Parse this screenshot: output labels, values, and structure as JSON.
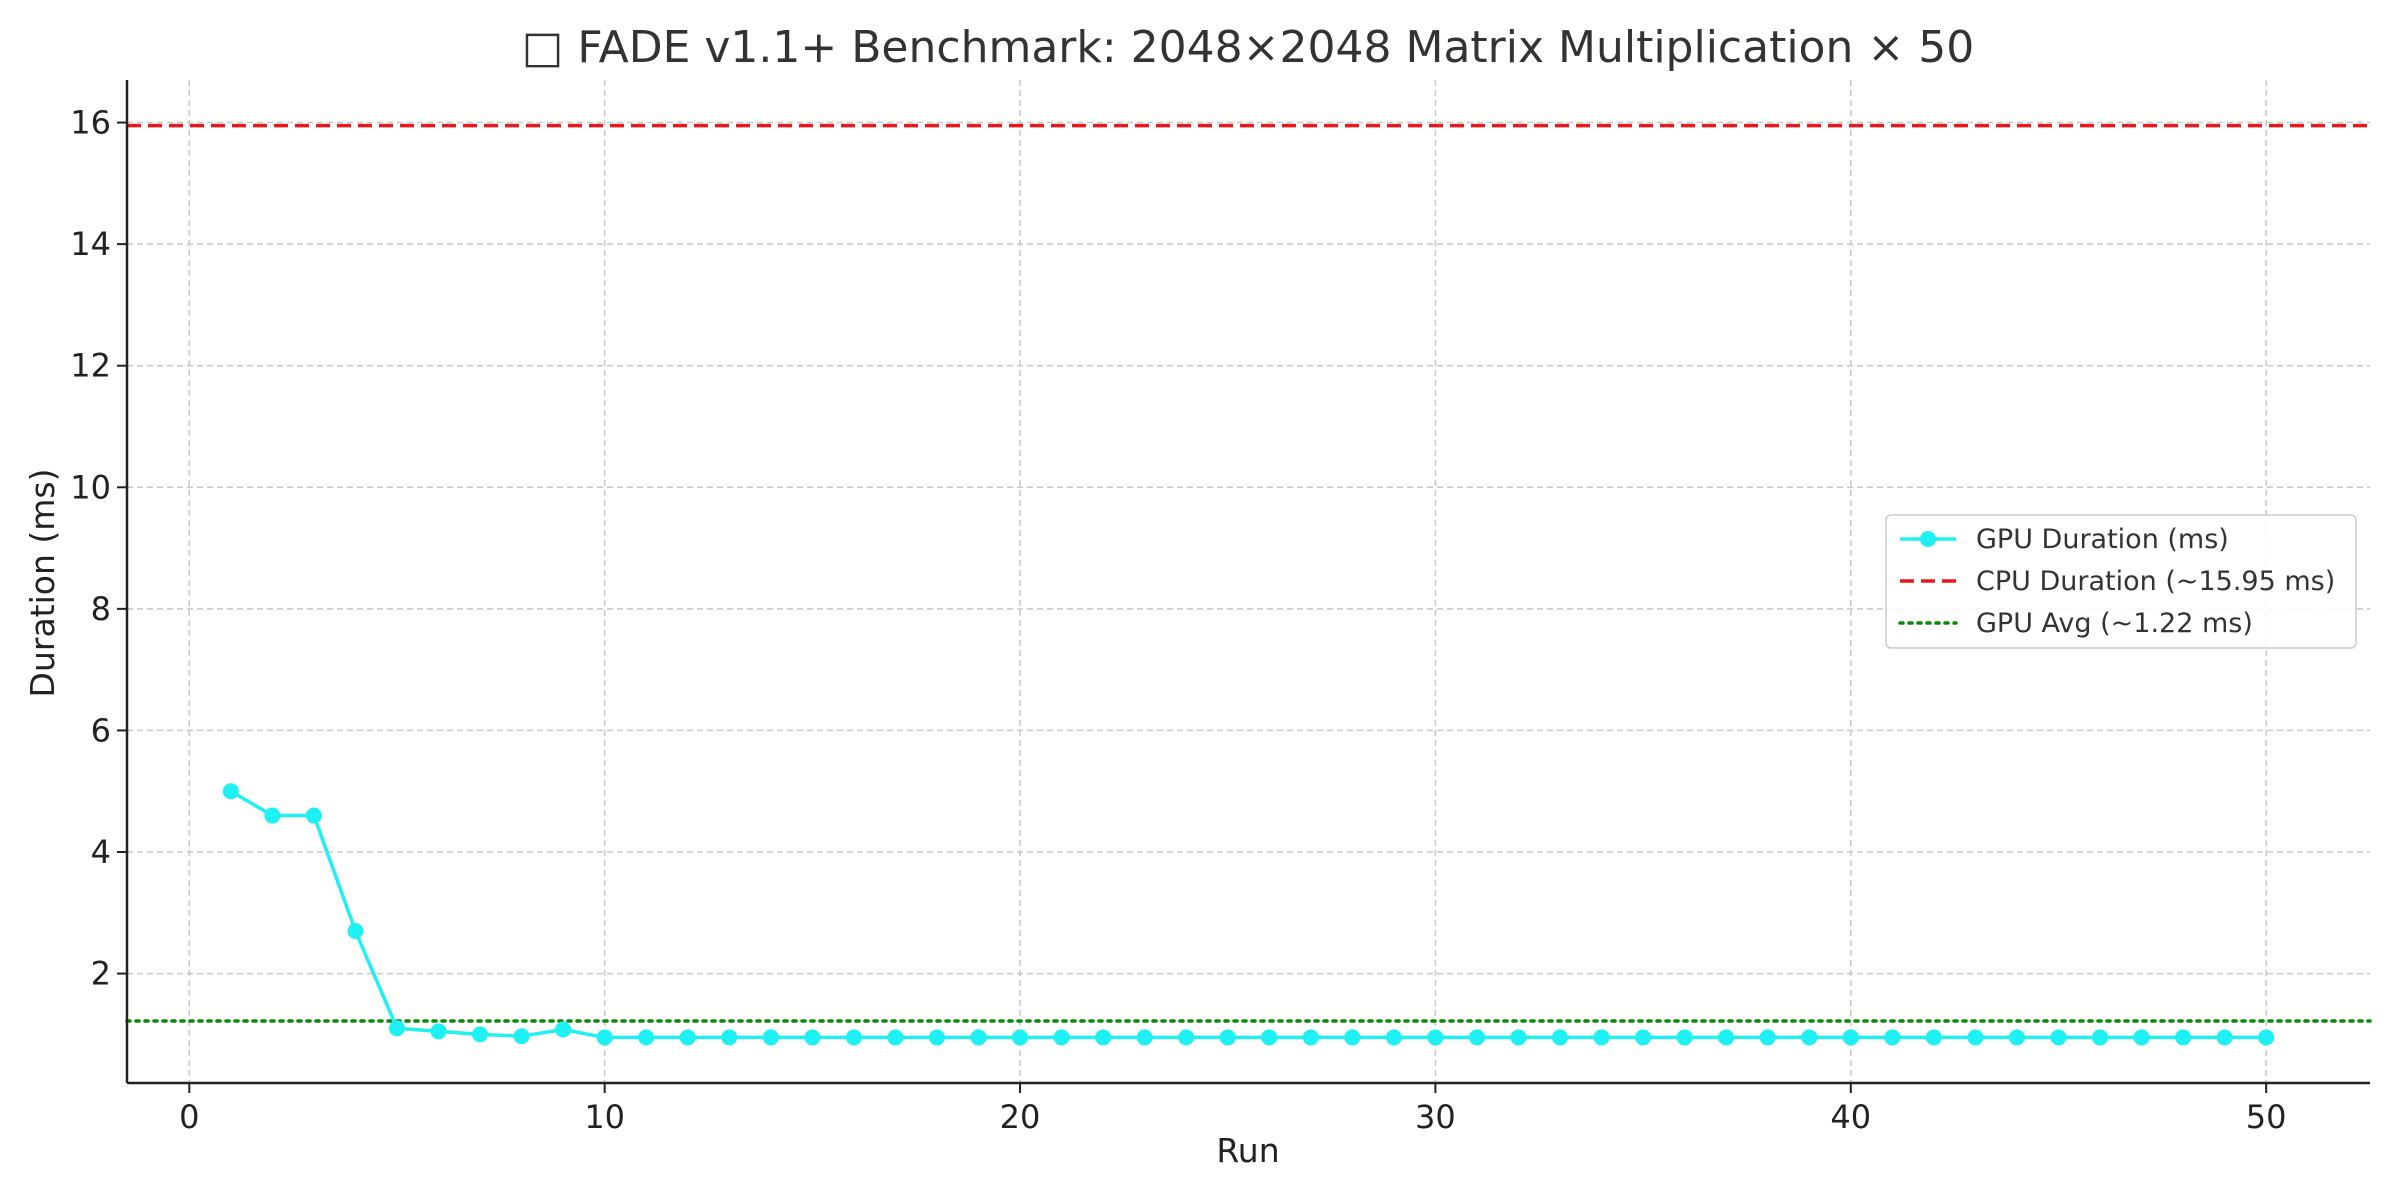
{
  "chart_data": {
    "type": "line",
    "title": "□ FADE v1.1+ Benchmark: 2048×2048 Matrix Multiplication × 50",
    "xlabel": "Run",
    "ylabel": "Duration (ms)",
    "xlim": [
      -1.5,
      52.5
    ],
    "ylim": [
      0.2,
      16.7
    ],
    "xticks": [
      0,
      10,
      20,
      30,
      40,
      50
    ],
    "yticks": [
      2,
      4,
      6,
      8,
      10,
      12,
      14,
      16
    ],
    "grid": true,
    "legend_position": "center-right",
    "series": [
      {
        "name": "GPU Duration (ms)",
        "style": "line-markers",
        "color": "#1ef0f4",
        "x": [
          1,
          2,
          3,
          4,
          5,
          6,
          7,
          8,
          9,
          10,
          11,
          12,
          13,
          14,
          15,
          16,
          17,
          18,
          19,
          20,
          21,
          22,
          23,
          24,
          25,
          26,
          27,
          28,
          29,
          30,
          31,
          32,
          33,
          34,
          35,
          36,
          37,
          38,
          39,
          40,
          41,
          42,
          43,
          44,
          45,
          46,
          47,
          48,
          49,
          50
        ],
        "y": [
          5.0,
          4.6,
          4.6,
          2.7,
          1.1,
          1.05,
          1.0,
          0.97,
          1.08,
          0.95,
          0.95,
          0.95,
          0.95,
          0.95,
          0.95,
          0.95,
          0.95,
          0.95,
          0.95,
          0.95,
          0.95,
          0.95,
          0.95,
          0.95,
          0.95,
          0.95,
          0.95,
          0.95,
          0.95,
          0.95,
          0.95,
          0.95,
          0.95,
          0.95,
          0.95,
          0.95,
          0.95,
          0.95,
          0.95,
          0.95,
          0.95,
          0.95,
          0.95,
          0.95,
          0.95,
          0.95,
          0.95,
          0.95,
          0.95,
          0.95
        ]
      },
      {
        "name": "CPU Duration (~15.95 ms)",
        "style": "hline-dashed",
        "color": "#e8191c",
        "y": 15.95
      },
      {
        "name": "GPU Avg (~1.22 ms)",
        "style": "hline-dotted",
        "color": "#0a8a0a",
        "y": 1.22
      }
    ]
  }
}
